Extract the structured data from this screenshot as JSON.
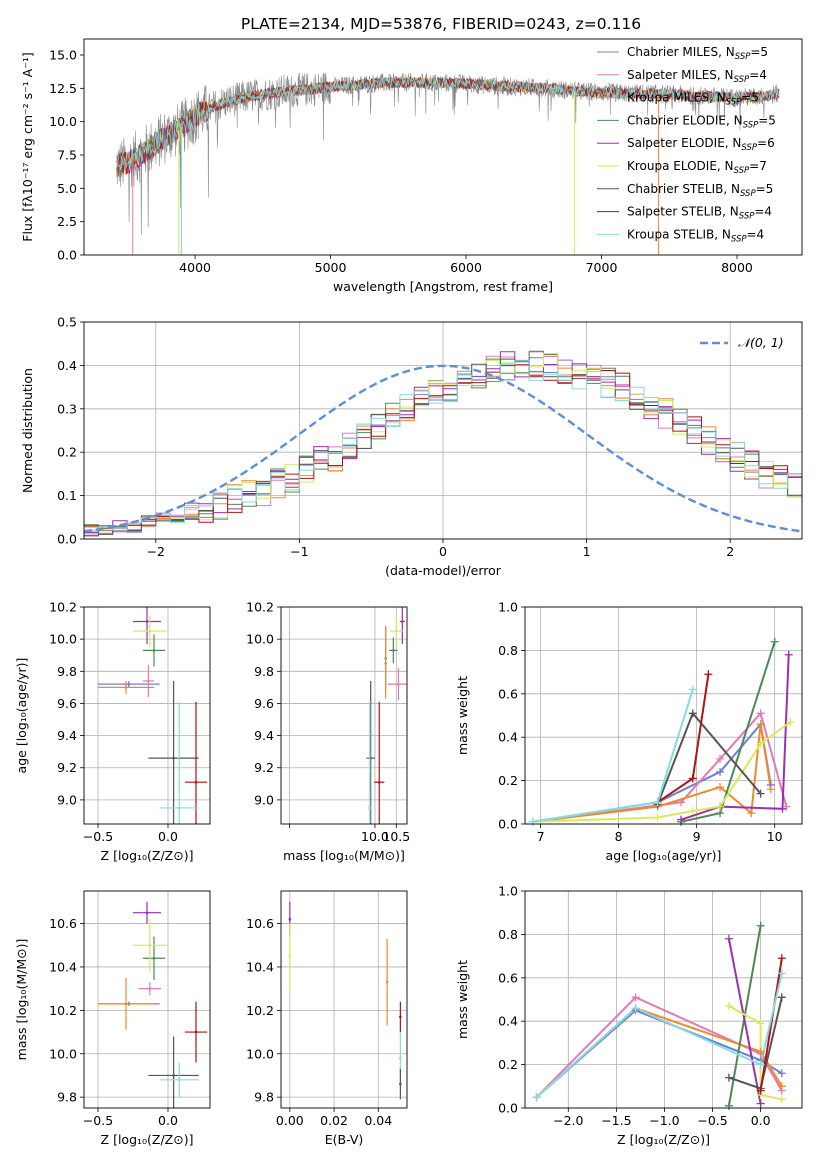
{
  "figure_title": "PLATE=2134, MJD=53876, FIBERID=0243, z=0.116",
  "colors": {
    "Chabrier MILES": "#6f7fd6",
    "Salpeter MILES": "#e17ab8",
    "Kroupa MILES": "#ef8a2c",
    "Chabrier ELODIE": "#4c8a55",
    "Salpeter ELODIE": "#9a2fb3",
    "Kroupa ELODIE": "#d7ea5a",
    "Chabrier STELIB": "#555555",
    "Salpeter STELIB": "#b01313",
    "Kroupa STELIB": "#86dbe0",
    "normal_curve": "#5b8fd6"
  },
  "chart_data": [
    {
      "id": "spectrum",
      "type": "line",
      "title": "PLATE=2134, MJD=53876, FIBERID=0243, z=0.116",
      "xlabel": "wavelength [Angstrom, rest frame]",
      "ylabel": "Flux [fλ10⁻¹⁷ erg cm⁻² s⁻¹ A⁻¹]",
      "xlim": [
        3180,
        8480
      ],
      "ylim": [
        0,
        16.2
      ],
      "xticks": [
        4000,
        5000,
        6000,
        7000,
        8000
      ],
      "yticks": [
        0.0,
        2.5,
        5.0,
        7.5,
        10.0,
        12.5,
        15.0
      ],
      "grid": false,
      "legend_position": "top-right",
      "legend": [
        {
          "label": "Chabrier MILES, N",
          "sub": "SSP",
          "suffix": "=5",
          "color_key": "Chabrier MILES"
        },
        {
          "label": "Salpeter MILES, N",
          "sub": "SSP",
          "suffix": "=4",
          "color_key": "Salpeter MILES"
        },
        {
          "label": "Kroupa MILES, N",
          "sub": "SSP",
          "suffix": "=5",
          "color_key": "Kroupa MILES"
        },
        {
          "label": "Chabrier ELODIE, N",
          "sub": "SSP",
          "suffix": "=5",
          "color_key": "Chabrier ELODIE"
        },
        {
          "label": "Salpeter ELODIE, N",
          "sub": "SSP",
          "suffix": "=6",
          "color_key": "Salpeter ELODIE"
        },
        {
          "label": "Kroupa ELODIE, N",
          "sub": "SSP",
          "suffix": "=7",
          "color_key": "Kroupa ELODIE"
        },
        {
          "label": "Chabrier STELIB, N",
          "sub": "SSP",
          "suffix": "=5",
          "color_key": "Chabrier STELIB"
        },
        {
          "label": "Salpeter STELIB, N",
          "sub": "SSP",
          "suffix": "=4",
          "color_key": "Salpeter STELIB"
        },
        {
          "label": "Kroupa STELIB, N",
          "sub": "SSP",
          "suffix": "=4",
          "color_key": "Kroupa STELIB"
        }
      ],
      "continuum": {
        "x": [
          3400,
          3500,
          3600,
          3700,
          3800,
          3900,
          4000,
          4200,
          4400,
          4600,
          4800,
          5000,
          5200,
          5400,
          5600,
          5800,
          6000,
          6200,
          6400,
          6600,
          6800,
          7000,
          7200,
          7400,
          7600,
          7800,
          8000,
          8200,
          8300
        ],
        "y": [
          6.6,
          6.9,
          7.5,
          8.3,
          9.0,
          9.5,
          10.4,
          11.4,
          11.9,
          12.2,
          12.4,
          12.6,
          12.8,
          12.9,
          12.95,
          12.9,
          12.85,
          12.7,
          12.6,
          12.5,
          12.3,
          12.2,
          12.1,
          12.1,
          12.0,
          11.9,
          11.8,
          11.9,
          12.1
        ]
      },
      "data_noise": 1.3,
      "data_dropouts": [
        {
          "x": 3540,
          "y": 0.0,
          "series": "Salpeter MILES"
        },
        {
          "x": 3880,
          "y": 0.0,
          "series": "Kroupa ELODIE"
        },
        {
          "x": 3900,
          "y": 0.0,
          "series": "Kroupa STELIB"
        },
        {
          "x": 6800,
          "y": 0.0,
          "series": "Kroupa ELODIE"
        },
        {
          "x": 7420,
          "y": 0.0,
          "series": "Kroupa MILES"
        }
      ]
    },
    {
      "id": "residual_hist",
      "type": "histogram",
      "xlabel": "(data-model)/error",
      "ylabel": "Normed distribution",
      "xlim": [
        -2.5,
        2.5
      ],
      "ylim": [
        0,
        0.5
      ],
      "xticks": [
        -2,
        -1,
        0,
        1,
        2
      ],
      "yticks": [
        0.0,
        0.1,
        0.2,
        0.3,
        0.4,
        0.5
      ],
      "grid": true,
      "legend_position": "top-right",
      "legend": [
        {
          "label": "𝒩(0, 1)",
          "color_key": "normal_curve",
          "style": "dashed"
        }
      ],
      "bin_width": 0.1,
      "bin_start": -2.5,
      "base_profile": [
        0.02,
        0.02,
        0.03,
        0.03,
        0.04,
        0.05,
        0.05,
        0.06,
        0.07,
        0.08,
        0.09,
        0.1,
        0.11,
        0.13,
        0.14,
        0.16,
        0.18,
        0.19,
        0.22,
        0.24,
        0.26,
        0.28,
        0.3,
        0.32,
        0.34,
        0.35,
        0.37,
        0.38,
        0.39,
        0.4,
        0.4,
        0.4,
        0.4,
        0.39,
        0.38,
        0.37,
        0.36,
        0.35,
        0.33,
        0.31,
        0.29,
        0.27,
        0.25,
        0.23,
        0.21,
        0.19,
        0.17,
        0.15,
        0.14,
        0.12,
        0.11,
        0.1,
        0.08,
        0.07,
        0.06,
        0.05,
        0.05,
        0.04,
        0.03,
        0.03,
        0.02,
        0.02,
        0.02,
        0.02,
        0.01,
        0.01,
        0.01,
        0.01,
        0.01,
        0.01,
        0.01,
        0.01,
        0.01,
        0.01,
        0.01,
        0.01,
        0.01,
        0.01,
        0.01,
        0.01
      ],
      "noise": 0.035
    },
    {
      "id": "age_vs_Z",
      "type": "errorbar",
      "xlabel": "Z [log₁₀(Z/Z⊙)]",
      "ylabel": "age  [log₁₀(age/yr)]",
      "xlim": [
        -0.6,
        0.3
      ],
      "ylim": [
        8.85,
        10.2
      ],
      "xticks": [
        -0.5,
        0.0
      ],
      "yticks": [
        9.0,
        9.2,
        9.4,
        9.6,
        9.8,
        10.0,
        10.2
      ],
      "grid": true,
      "points": [
        {
          "s": "Chabrier MILES",
          "x": -0.28,
          "xe": 0.22,
          "y": 9.72,
          "ye": 0.02
        },
        {
          "s": "Salpeter MILES",
          "x": -0.14,
          "xe": 0.04,
          "y": 9.74,
          "ye": 0.1
        },
        {
          "s": "Kroupa MILES",
          "x": -0.3,
          "xe": 0.2,
          "y": 9.7,
          "ye": 0.04
        },
        {
          "s": "Chabrier ELODIE",
          "x": -0.1,
          "xe": 0.08,
          "y": 9.93,
          "ye": 0.1
        },
        {
          "s": "Salpeter ELODIE",
          "x": -0.15,
          "xe": 0.1,
          "y": 10.11,
          "ye": 0.14
        },
        {
          "s": "Kroupa ELODIE",
          "x": -0.13,
          "xe": 0.12,
          "y": 10.05,
          "ye": 0.1
        },
        {
          "s": "Chabrier STELIB",
          "x": 0.04,
          "xe": 0.18,
          "y": 9.26,
          "ye": 0.48
        },
        {
          "s": "Salpeter STELIB",
          "x": 0.2,
          "xe": 0.08,
          "y": 9.11,
          "ye": 0.5
        },
        {
          "s": "Kroupa STELIB",
          "x": 0.08,
          "xe": 0.14,
          "y": 8.95,
          "ye": 0.66
        }
      ]
    },
    {
      "id": "age_vs_mass",
      "type": "errorbar",
      "xlabel": "mass [log₁₀(M/M⊙)]",
      "ylabel": "",
      "xlim": [
        7.8,
        10.75
      ],
      "ylim": [
        8.85,
        10.2
      ],
      "xticks": [
        8.0,
        10.0,
        10.5
      ],
      "xtick_labels": [
        "",
        "10.0",
        "10.5"
      ],
      "yticks": [
        9.0,
        9.2,
        9.4,
        9.6,
        9.8,
        10.0,
        10.2
      ],
      "grid": true,
      "points": [
        {
          "s": "Chabrier MILES",
          "x": 10.25,
          "xe": 0.02,
          "y": 9.88,
          "ye": 0.2
        },
        {
          "s": "Salpeter MILES",
          "x": 10.55,
          "xe": 0.25,
          "y": 9.72,
          "ye": 0.1
        },
        {
          "s": "Kroupa MILES",
          "x": 10.25,
          "xe": 0.02,
          "y": 9.85,
          "ye": 0.22
        },
        {
          "s": "Chabrier ELODIE",
          "x": 10.43,
          "xe": 0.1,
          "y": 9.93,
          "ye": 0.08
        },
        {
          "s": "Salpeter ELODIE",
          "x": 10.64,
          "xe": 0.06,
          "y": 10.11,
          "ye": 0.14
        },
        {
          "s": "Kroupa ELODIE",
          "x": 10.5,
          "xe": 0.15,
          "y": 10.05,
          "ye": 0.08
        },
        {
          "s": "Chabrier STELIB",
          "x": 9.9,
          "xe": 0.1,
          "y": 9.26,
          "ye": 0.48
        },
        {
          "s": "Salpeter STELIB",
          "x": 10.1,
          "xe": 0.12,
          "y": 9.11,
          "ye": 0.5
        },
        {
          "s": "Kroupa STELIB",
          "x": 9.88,
          "xe": 0.05,
          "y": 8.95,
          "ye": 0.66
        }
      ]
    },
    {
      "id": "massweight_vs_age",
      "type": "line",
      "xlabel": "age  [log₁₀(age/yr)]",
      "ylabel": "mass weight",
      "xlim": [
        6.8,
        10.35
      ],
      "ylim": [
        0,
        1.0
      ],
      "xticks": [
        7,
        8,
        9,
        10
      ],
      "yticks": [
        0.0,
        0.2,
        0.4,
        0.6,
        0.8,
        1.0
      ],
      "grid": true,
      "series": [
        {
          "s": "Chabrier MILES",
          "x": [
            6.9,
            8.5,
            9.3,
            9.82,
            9.95
          ],
          "y": [
            0.01,
            0.1,
            0.24,
            0.46,
            0.18
          ]
        },
        {
          "s": "Salpeter MILES",
          "x": [
            6.9,
            8.8,
            9.3,
            9.82,
            10.15
          ],
          "y": [
            0.01,
            0.1,
            0.3,
            0.51,
            0.08
          ]
        },
        {
          "s": "Kroupa MILES",
          "x": [
            6.9,
            8.5,
            9.3,
            9.7,
            9.82,
            9.95
          ],
          "y": [
            0.01,
            0.08,
            0.17,
            0.05,
            0.46,
            0.16
          ]
        },
        {
          "s": "Chabrier ELODIE",
          "x": [
            8.8,
            9.3,
            10.0
          ],
          "y": [
            0.01,
            0.05,
            0.84
          ]
        },
        {
          "s": "Salpeter ELODIE",
          "x": [
            8.8,
            9.3,
            10.1,
            10.18
          ],
          "y": [
            0.02,
            0.08,
            0.07,
            0.78
          ]
        },
        {
          "s": "Kroupa ELODIE",
          "x": [
            6.9,
            8.5,
            8.95,
            9.3,
            9.82,
            10.2
          ],
          "y": [
            0.01,
            0.03,
            0.06,
            0.08,
            0.37,
            0.47
          ]
        },
        {
          "s": "Chabrier STELIB",
          "x": [
            8.5,
            8.95,
            9.82
          ],
          "y": [
            0.09,
            0.51,
            0.14
          ]
        },
        {
          "s": "Salpeter STELIB",
          "x": [
            8.5,
            8.95,
            9.15
          ],
          "y": [
            0.1,
            0.21,
            0.69
          ]
        },
        {
          "s": "Kroupa STELIB",
          "x": [
            6.9,
            8.5,
            8.95
          ],
          "y": [
            0.01,
            0.1,
            0.62
          ]
        }
      ]
    },
    {
      "id": "mass_vs_Z",
      "type": "errorbar",
      "xlabel": "Z [log₁₀(Z/Z⊙)]",
      "ylabel": "mass [log₁₀(M/M⊙)]",
      "xlim": [
        -0.6,
        0.3
      ],
      "ylim": [
        9.75,
        10.75
      ],
      "xticks": [
        -0.5,
        0.0
      ],
      "yticks": [
        9.8,
        10.0,
        10.2,
        10.4,
        10.6
      ],
      "grid": true,
      "points": [
        {
          "s": "Chabrier MILES",
          "x": -0.28,
          "xe": 0.22,
          "y": 10.23,
          "ye": 0.01
        },
        {
          "s": "Salpeter MILES",
          "x": -0.13,
          "xe": 0.08,
          "y": 10.3,
          "ye": 0.03
        },
        {
          "s": "Kroupa MILES",
          "x": -0.3,
          "xe": 0.2,
          "y": 10.23,
          "ye": 0.12
        },
        {
          "s": "Chabrier ELODIE",
          "x": -0.1,
          "xe": 0.08,
          "y": 10.44,
          "ye": 0.1
        },
        {
          "s": "Salpeter ELODIE",
          "x": -0.15,
          "xe": 0.1,
          "y": 10.65,
          "ye": 0.05
        },
        {
          "s": "Kroupa ELODIE",
          "x": -0.13,
          "xe": 0.12,
          "y": 10.5,
          "ye": 0.12
        },
        {
          "s": "Chabrier STELIB",
          "x": 0.04,
          "xe": 0.18,
          "y": 9.9,
          "ye": 0.18
        },
        {
          "s": "Salpeter STELIB",
          "x": 0.2,
          "xe": 0.08,
          "y": 10.1,
          "ye": 0.14
        },
        {
          "s": "Kroupa STELIB",
          "x": 0.08,
          "xe": 0.14,
          "y": 9.88,
          "ye": 0.08
        }
      ]
    },
    {
      "id": "mass_vs_ebv",
      "type": "errorbar",
      "xlabel": "E(B-V)",
      "ylabel": "",
      "xlim": [
        -0.004,
        0.053
      ],
      "ylim": [
        9.75,
        10.75
      ],
      "xticks": [
        0.0,
        0.02,
        0.04
      ],
      "xtick_labels": [
        "0.00",
        "0.02",
        "0.04"
      ],
      "yticks": [
        9.8,
        10.0,
        10.2,
        10.4,
        10.6
      ],
      "grid": true,
      "points": [
        {
          "s": "Salpeter ELODIE",
          "x": 0.0,
          "xe": 0.0,
          "y": 10.62,
          "ye": 0.08
        },
        {
          "s": "Kroupa ELODIE",
          "x": 0.0,
          "xe": 0.0,
          "y": 10.45,
          "ye": 0.15
        },
        {
          "s": "Kroupa MILES",
          "x": 0.044,
          "xe": 0.0,
          "y": 10.33,
          "ye": 0.2
        },
        {
          "s": "Salpeter STELIB",
          "x": 0.05,
          "xe": 0.0,
          "y": 10.17,
          "ye": 0.07
        },
        {
          "s": "Kroupa STELIB",
          "x": 0.05,
          "xe": 0.0,
          "y": 9.98,
          "ye": 0.12
        },
        {
          "s": "Chabrier STELIB",
          "x": 0.05,
          "xe": 0.0,
          "y": 9.86,
          "ye": 0.07
        }
      ]
    },
    {
      "id": "massweight_vs_Z",
      "type": "line",
      "xlabel": "Z [log₁₀(Z/Z⊙)]",
      "ylabel": "mass weight",
      "xlim": [
        -2.45,
        0.43
      ],
      "ylim": [
        0,
        1.0
      ],
      "xticks": [
        -2.0,
        -1.5,
        -1.0,
        -0.5,
        0.0
      ],
      "yticks": [
        0.0,
        0.2,
        0.4,
        0.6,
        0.8,
        1.0
      ],
      "grid": true,
      "series": [
        {
          "s": "Chabrier MILES",
          "x": [
            -2.33,
            -1.3,
            0.0,
            0.22
          ],
          "y": [
            0.05,
            0.45,
            0.22,
            0.16
          ]
        },
        {
          "s": "Salpeter MILES",
          "x": [
            -2.33,
            -1.3,
            0.0,
            0.22
          ],
          "y": [
            0.05,
            0.51,
            0.25,
            0.08
          ]
        },
        {
          "s": "Kroupa MILES",
          "x": [
            -2.33,
            -1.3,
            0.0,
            0.22
          ],
          "y": [
            0.05,
            0.46,
            0.26,
            0.1
          ]
        },
        {
          "s": "Chabrier ELODIE",
          "x": [
            -0.33,
            0.0
          ],
          "y": [
            0.01,
            0.84
          ]
        },
        {
          "s": "Salpeter ELODIE",
          "x": [
            -0.33,
            0.0
          ],
          "y": [
            0.78,
            0.02
          ]
        },
        {
          "s": "Kroupa ELODIE",
          "x": [
            -0.33,
            0.0,
            0.0,
            0.22
          ],
          "y": [
            0.47,
            0.39,
            0.06,
            0.04
          ]
        },
        {
          "s": "Chabrier STELIB",
          "x": [
            -0.33,
            0.0,
            0.22
          ],
          "y": [
            0.14,
            0.09,
            0.51
          ]
        },
        {
          "s": "Salpeter STELIB",
          "x": [
            0.0,
            0.22
          ],
          "y": [
            0.08,
            0.69
          ]
        },
        {
          "s": "Kroupa STELIB",
          "x": [
            -2.33,
            -1.3,
            0.0,
            0.22
          ],
          "y": [
            0.05,
            0.46,
            0.2,
            0.62
          ]
        }
      ]
    }
  ]
}
